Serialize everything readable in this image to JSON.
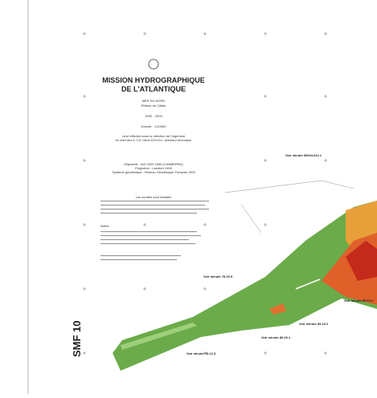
{
  "header": {
    "title_line1": "MISSION HYDROGRAPHIQUE",
    "title_line2": "DE L'ATLANTIQUE",
    "region": "MER DU NORD",
    "area": "Rideau de Calais",
    "years": "2002 - 2004",
    "scale": "Echelle : 1/10000"
  },
  "notes": [
    "Levé effectué sous la direction de l'ingénieur",
    "en chef des E.T.A. Henri DOLOU, directeur technique",
    "Ellipsoïde : IAG GRS 1980 (CANBERRA)",
    "Projection : Lambert 1993",
    "Système géodésique : Réseau Géodésique Français 1993",
    "Les sondes sont réduites",
    "Notes"
  ],
  "labels": [
    "Voir minute 92004.022.1",
    "Voir minute 78.16.9",
    "Voir minute 89.23.2",
    "Voir minute 93.23.2",
    "Voir minute 80.40.1",
    "Voir minute 78.12.3"
  ],
  "sheet_id": "SMF 10"
}
